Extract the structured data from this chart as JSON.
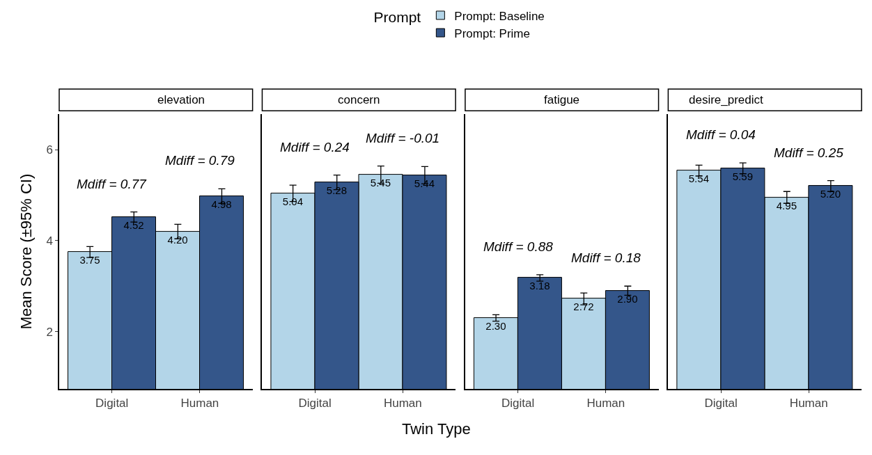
{
  "chart_data": [
    {
      "type": "bar",
      "title": "elevation",
      "ylabel": "Mean Score (±95% CI)",
      "legend_title": "Prompt",
      "legend": "top",
      "categories": [
        "Digital",
        "Human"
      ],
      "ylim": [
        0.74,
        6.78
      ],
      "yticks": [
        2,
        4,
        6
      ],
      "series": [
        {
          "name": "Prompt: Baseline",
          "color": "#b3d5e8",
          "values": [
            3.75,
            4.2
          ],
          "value_labels": [
            "3.75",
            "4.20"
          ],
          "errors": [
            0.12,
            0.16
          ]
        },
        {
          "name": "Prompt: Prime",
          "color": "#34568a",
          "values": [
            4.52,
            4.98
          ],
          "value_labels": [
            "4.52",
            "4.98"
          ],
          "errors": [
            0.11,
            0.16
          ]
        }
      ],
      "annotations": [
        "Mdiff = 0.77",
        "Mdiff = 0.79"
      ]
    },
    {
      "type": "bar",
      "title": "concern",
      "xlabel": "Twin Type",
      "legend": false,
      "tick_labels": "x",
      "categories": [
        "Digital",
        "Human"
      ],
      "ylim": [
        0.74,
        6.78
      ],
      "series": [
        {
          "color": "#b3d5e8",
          "values": [
            5.04,
            5.45
          ],
          "value_labels": [
            "5.04",
            "5.45"
          ],
          "errors": [
            0.18,
            0.19
          ]
        },
        {
          "color": "#34568a",
          "values": [
            5.28,
            5.44
          ],
          "value_labels": [
            "5.28",
            "5.44"
          ],
          "errors": [
            0.16,
            0.19
          ]
        }
      ],
      "annotations": [
        "Mdiff = 0.24",
        "Mdiff = -0.01"
      ]
    },
    {
      "type": "bar",
      "title": "fatigue",
      "legend": false,
      "tick_labels": "x",
      "categories": [
        "Digital",
        "Human"
      ],
      "ylim": [
        0.74,
        6.78
      ],
      "series": [
        {
          "color": "#b3d5e8",
          "values": [
            2.3,
            2.72
          ],
          "value_labels": [
            "2.30",
            "2.72"
          ],
          "errors": [
            0.07,
            0.13
          ]
        },
        {
          "color": "#34568a",
          "values": [
            3.18,
            2.9
          ],
          "value_labels": [
            "3.18",
            "2.90"
          ],
          "errors": [
            0.07,
            0.1
          ]
        }
      ],
      "annotations": [
        "Mdiff = 0.88",
        "Mdiff = 0.18"
      ]
    },
    {
      "type": "bar",
      "title": "desire_predict",
      "legend": false,
      "tick_labels": "x",
      "categories": [
        "Digital",
        "Human"
      ],
      "ylim": [
        0.74,
        6.78
      ],
      "series": [
        {
          "color": "#b3d5e8",
          "values": [
            5.54,
            4.95
          ],
          "value_labels": [
            "5.54",
            "4.95"
          ],
          "errors": [
            0.12,
            0.13
          ]
        },
        {
          "color": "#34568a",
          "values": [
            5.59,
            5.2
          ],
          "value_labels": [
            "5.59",
            "5.20"
          ],
          "errors": [
            0.12,
            0.12
          ]
        }
      ],
      "annotations": [
        "Mdiff = 0.04",
        "Mdiff = 0.25"
      ]
    }
  ]
}
